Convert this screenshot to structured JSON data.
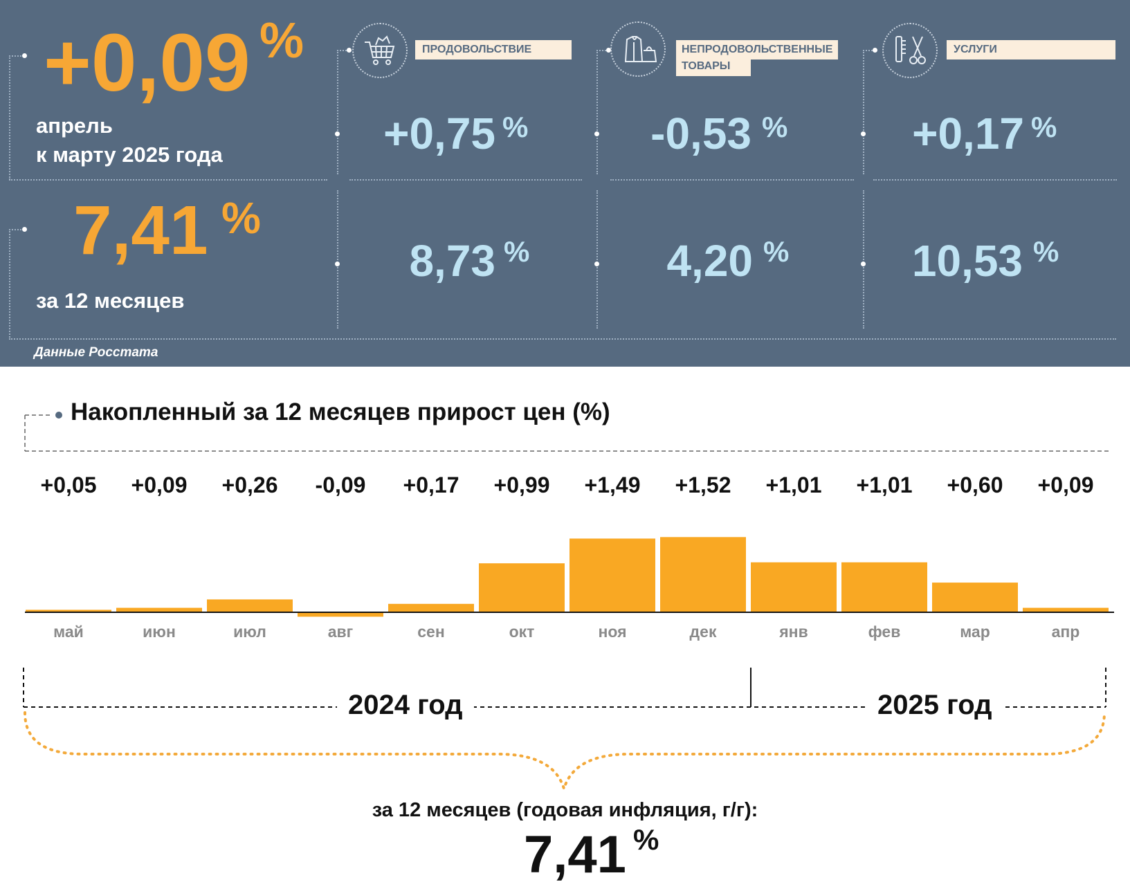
{
  "summary": {
    "monthly": {
      "value": "+0,09",
      "unit": "%",
      "label_line1": "апрель",
      "label_line2": "к марту 2025 года"
    },
    "annual": {
      "value": "7,41",
      "unit": "%",
      "label": "за 12 месяцев"
    },
    "source": "Данные Росстата"
  },
  "categories": [
    {
      "label": "ПРОДОВОЛЬСТВИЕ",
      "icon": "shopping-cart-icon",
      "monthly": "+0,75",
      "annual": "8,73",
      "unit": "%"
    },
    {
      "label": "НЕПРОДОВОЛЬСТВЕННЫЕ ТОВАРЫ",
      "label_line1": "НЕПРОДОВОЛЬСТВЕННЫЕ",
      "label_line2": "ТОВАРЫ",
      "icon": "clothing-bag-icon",
      "monthly": "-0,53",
      "annual": "4,20",
      "unit": "%"
    },
    {
      "label": "УСЛУГИ",
      "icon": "comb-scissors-icon",
      "monthly": "+0,17",
      "annual": "10,53",
      "unit": "%"
    }
  ],
  "chart_data": {
    "type": "bar",
    "title": "Накопленный за 12 месяцев прирост цен (%)",
    "categories": [
      "май",
      "июн",
      "июл",
      "авг",
      "сен",
      "окт",
      "ноя",
      "дек",
      "янв",
      "фев",
      "мар",
      "апр"
    ],
    "values": [
      0.05,
      0.09,
      0.26,
      -0.09,
      0.17,
      0.99,
      1.49,
      1.52,
      1.01,
      1.01,
      0.6,
      0.09
    ],
    "value_labels": [
      "+0,05",
      "+0,09",
      "+0,26",
      "-0,09",
      "+0,17",
      "+0,99",
      "+1,49",
      "+1,52",
      "+1,01",
      "+1,01",
      "+0,60",
      "+0,09"
    ],
    "bar_color": "#f9a823",
    "years": [
      "2024 год",
      "2025 год"
    ],
    "total_label": "за 12 месяцев (годовая инфляция, г/г):",
    "total_value": "7,41",
    "total_unit": "%"
  }
}
